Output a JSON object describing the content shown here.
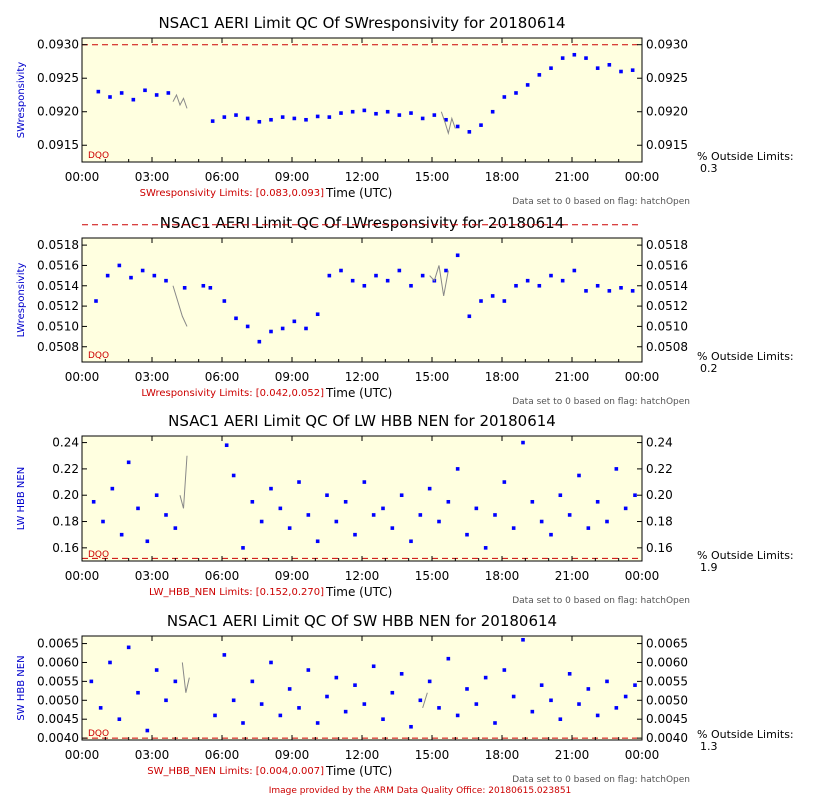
{
  "credit": "Image provided by the ARM Data Quality Office: 20180615.023851",
  "colors": {
    "plot_bg": "#ffffe0",
    "points": "#0000ff",
    "flagged": "#888888",
    "limit_line": "#cc0000"
  },
  "chart_data": [
    {
      "type": "scatter",
      "title": "NSAC1 AERI Limit QC Of SWresponsivity for 20180614",
      "ylabel": "SWresponsivity",
      "xlabel": "Time (UTC)",
      "limits_text": "SWresponsivity Limits: [0.083,0.093]",
      "flag_note": "Data set to 0 based on flag: hatchOpen",
      "pct_label": "% Outside Limits:",
      "pct_value": "0.3",
      "dqo": "DQO",
      "xlim": [
        0,
        24
      ],
      "ylim": [
        0.09125,
        0.0931
      ],
      "limit_y": 0.093,
      "x_ticks": [
        "00:00",
        "03:00",
        "06:00",
        "09:00",
        "12:00",
        "15:00",
        "18:00",
        "21:00",
        "00:00"
      ],
      "y_ticks": [
        "0.0915",
        "0.0920",
        "0.0925",
        "0.0930"
      ],
      "y_tick_values": [
        0.0915,
        0.092,
        0.0925,
        0.093
      ],
      "series": [
        {
          "style": "dots",
          "x": [
            0.7,
            1.2,
            1.7,
            2.2,
            2.7,
            3.2,
            3.7,
            5.6,
            6.1,
            6.6,
            7.1,
            7.6,
            8.1,
            8.6,
            9.1,
            9.6,
            10.1,
            10.6,
            11.1,
            11.6,
            12.1,
            12.6,
            13.1,
            13.6,
            14.1,
            14.6,
            15.1,
            15.6,
            16.1,
            16.6,
            17.1,
            17.6,
            18.1,
            18.6,
            19.1,
            19.6,
            20.1,
            20.6,
            21.1,
            21.6,
            22.1,
            22.6,
            23.1,
            23.6
          ],
          "y": [
            0.0923,
            0.09222,
            0.09228,
            0.09218,
            0.09232,
            0.09225,
            0.09228,
            0.09186,
            0.09192,
            0.09195,
            0.0919,
            0.09185,
            0.09188,
            0.09192,
            0.0919,
            0.09188,
            0.09193,
            0.09192,
            0.09198,
            0.092,
            0.09202,
            0.09197,
            0.092,
            0.09195,
            0.09198,
            0.0919,
            0.09195,
            0.09188,
            0.09178,
            0.0917,
            0.0918,
            0.092,
            0.09222,
            0.09228,
            0.0924,
            0.09255,
            0.09265,
            0.0928,
            0.09285,
            0.0928,
            0.09265,
            0.0927,
            0.0926,
            0.09262
          ]
        },
        {
          "style": "line",
          "x": [
            3.9,
            4.05,
            4.2,
            4.35,
            4.5,
            15.4,
            15.55,
            15.7,
            15.85,
            16.0
          ],
          "y": [
            0.09215,
            0.09225,
            0.0921,
            0.0922,
            0.09205,
            0.092,
            0.09185,
            0.09168,
            0.0919,
            0.09175
          ]
        }
      ]
    },
    {
      "type": "scatter",
      "title": "NSAC1 AERI Limit QC Of LWresponsivity for 20180614",
      "ylabel": "LWresponsivity",
      "xlabel": "Time (UTC)",
      "limits_text": "LWresponsivity Limits: [0.042,0.052]",
      "flag_note": "Data set to 0 based on flag: hatchOpen",
      "pct_label": "% Outside Limits:",
      "pct_value": "0.2",
      "dqo": "DQO",
      "xlim": [
        0,
        24
      ],
      "ylim": [
        0.05065,
        0.05187
      ],
      "limit_y": 0.052,
      "x_ticks": [
        "00:00",
        "03:00",
        "06:00",
        "09:00",
        "12:00",
        "15:00",
        "18:00",
        "21:00",
        "00:00"
      ],
      "y_ticks": [
        "0.0508",
        "0.0510",
        "0.0512",
        "0.0514",
        "0.0516",
        "0.0518"
      ],
      "y_tick_values": [
        0.0508,
        0.051,
        0.0512,
        0.0514,
        0.0516,
        0.0518
      ],
      "series": [
        {
          "style": "dots",
          "x": [
            0.6,
            1.1,
            1.6,
            2.1,
            2.6,
            3.1,
            3.6,
            4.4,
            5.2,
            5.5,
            6.1,
            6.6,
            7.1,
            7.6,
            8.1,
            8.6,
            9.1,
            9.6,
            10.1,
            10.6,
            11.1,
            11.6,
            12.1,
            12.6,
            13.1,
            13.6,
            14.1,
            14.6,
            15.1,
            15.6,
            16.1,
            16.6,
            17.1,
            17.6,
            18.1,
            18.6,
            19.1,
            19.6,
            20.1,
            20.6,
            21.1,
            21.6,
            22.1,
            22.6,
            23.1,
            23.6
          ],
          "y": [
            0.05125,
            0.0515,
            0.0516,
            0.05148,
            0.05155,
            0.0515,
            0.05145,
            0.05138,
            0.0514,
            0.05138,
            0.05125,
            0.05108,
            0.051,
            0.05085,
            0.05095,
            0.05098,
            0.05105,
            0.05098,
            0.05112,
            0.0515,
            0.05155,
            0.05145,
            0.0514,
            0.0515,
            0.05145,
            0.05155,
            0.0514,
            0.0515,
            0.05145,
            0.05155,
            0.0517,
            0.0511,
            0.05125,
            0.0513,
            0.05125,
            0.0514,
            0.05145,
            0.0514,
            0.0515,
            0.05145,
            0.05155,
            0.05135,
            0.0514,
            0.05135,
            0.05138,
            0.05135
          ]
        },
        {
          "style": "line",
          "x": [
            3.9,
            4.1,
            4.3,
            4.5,
            14.9,
            15.1,
            15.3,
            15.5,
            15.7
          ],
          "y": [
            0.0514,
            0.05125,
            0.0511,
            0.051,
            0.0515,
            0.05145,
            0.0516,
            0.0513,
            0.05155
          ]
        }
      ]
    },
    {
      "type": "scatter",
      "title": "NSAC1 AERI Limit QC Of LW HBB NEN for 20180614",
      "ylabel": "LW HBB NEN",
      "xlabel": "Time (UTC)",
      "limits_text": "LW_HBB_NEN Limits: [0.152,0.270]",
      "flag_note": "Data set to 0 based on flag: hatchOpen",
      "pct_label": "% Outside Limits:",
      "pct_value": "1.9",
      "dqo": "DQO",
      "xlim": [
        0,
        24
      ],
      "ylim": [
        0.15,
        0.245
      ],
      "limit_y": 0.152,
      "x_ticks": [
        "00:00",
        "03:00",
        "06:00",
        "09:00",
        "12:00",
        "15:00",
        "18:00",
        "21:00",
        "00:00"
      ],
      "y_ticks": [
        "0.16",
        "0.18",
        "0.20",
        "0.22",
        "0.24"
      ],
      "y_tick_values": [
        0.16,
        0.18,
        0.2,
        0.22,
        0.24
      ],
      "series": [
        {
          "style": "dots",
          "x": [
            0.5,
            0.9,
            1.3,
            1.7,
            2.0,
            2.4,
            2.8,
            3.2,
            3.6,
            4.0,
            6.2,
            6.5,
            6.9,
            7.3,
            7.7,
            8.1,
            8.5,
            8.9,
            9.3,
            9.7,
            10.1,
            10.5,
            10.9,
            11.3,
            11.7,
            12.1,
            12.5,
            12.9,
            13.3,
            13.7,
            14.1,
            14.5,
            14.9,
            15.3,
            15.7,
            16.1,
            16.5,
            16.9,
            17.3,
            17.7,
            18.1,
            18.5,
            18.9,
            19.3,
            19.7,
            20.1,
            20.5,
            20.9,
            21.3,
            21.7,
            22.1,
            22.5,
            22.9,
            23.3,
            23.7
          ],
          "y": [
            0.195,
            0.18,
            0.205,
            0.17,
            0.225,
            0.19,
            0.165,
            0.2,
            0.185,
            0.175,
            0.238,
            0.215,
            0.16,
            0.195,
            0.18,
            0.205,
            0.19,
            0.175,
            0.21,
            0.185,
            0.165,
            0.2,
            0.18,
            0.195,
            0.17,
            0.21,
            0.185,
            0.19,
            0.175,
            0.2,
            0.165,
            0.185,
            0.205,
            0.18,
            0.195,
            0.22,
            0.17,
            0.19,
            0.16,
            0.185,
            0.21,
            0.175,
            0.24,
            0.195,
            0.18,
            0.17,
            0.2,
            0.185,
            0.215,
            0.175,
            0.195,
            0.18,
            0.22,
            0.19,
            0.2
          ]
        },
        {
          "style": "line",
          "x": [
            4.2,
            4.35,
            4.5
          ],
          "y": [
            0.2,
            0.19,
            0.23
          ]
        }
      ]
    },
    {
      "type": "scatter",
      "title": "NSAC1 AERI Limit QC Of SW HBB NEN for 20180614",
      "ylabel": "SW HBB NEN",
      "xlabel": "Time (UTC)",
      "limits_text": "SW_HBB_NEN Limits: [0.004,0.007]",
      "flag_note": "Data set to 0 based on flag: hatchOpen",
      "pct_label": "% Outside Limits:",
      "pct_value": "1.3",
      "dqo": "DQO",
      "xlim": [
        0,
        24
      ],
      "ylim": [
        0.00395,
        0.0067
      ],
      "limit_y": 0.004,
      "x_ticks": [
        "00:00",
        "03:00",
        "06:00",
        "09:00",
        "12:00",
        "15:00",
        "18:00",
        "21:00",
        "00:00"
      ],
      "y_ticks": [
        "0.0040",
        "0.0045",
        "0.0050",
        "0.0055",
        "0.0060",
        "0.0065"
      ],
      "y_tick_values": [
        0.004,
        0.0045,
        0.005,
        0.0055,
        0.006,
        0.0065
      ],
      "series": [
        {
          "style": "dots",
          "x": [
            0.4,
            0.8,
            1.2,
            1.6,
            2.0,
            2.4,
            2.8,
            3.2,
            3.6,
            4.0,
            5.7,
            6.1,
            6.5,
            6.9,
            7.3,
            7.7,
            8.1,
            8.5,
            8.9,
            9.3,
            9.7,
            10.1,
            10.5,
            10.9,
            11.3,
            11.7,
            12.1,
            12.5,
            12.9,
            13.3,
            13.7,
            14.1,
            14.5,
            14.9,
            15.3,
            15.7,
            16.1,
            16.5,
            16.9,
            17.3,
            17.7,
            18.1,
            18.5,
            18.9,
            19.3,
            19.7,
            20.1,
            20.5,
            20.9,
            21.3,
            21.7,
            22.1,
            22.5,
            22.9,
            23.3,
            23.7
          ],
          "y": [
            0.0055,
            0.0048,
            0.006,
            0.0045,
            0.0064,
            0.0052,
            0.0042,
            0.0058,
            0.005,
            0.0055,
            0.0046,
            0.0062,
            0.005,
            0.0044,
            0.0055,
            0.0049,
            0.006,
            0.0046,
            0.0053,
            0.0048,
            0.0058,
            0.0044,
            0.0051,
            0.0056,
            0.0047,
            0.0054,
            0.0049,
            0.0059,
            0.0045,
            0.0052,
            0.0057,
            0.0043,
            0.005,
            0.0055,
            0.0048,
            0.0061,
            0.0046,
            0.0053,
            0.0049,
            0.0056,
            0.0044,
            0.0058,
            0.0051,
            0.0066,
            0.0047,
            0.0054,
            0.005,
            0.0045,
            0.0057,
            0.0049,
            0.0053,
            0.0046,
            0.0055,
            0.0048,
            0.0051,
            0.0054
          ]
        },
        {
          "style": "line",
          "x": [
            4.3,
            4.45,
            4.6,
            14.6,
            14.8
          ],
          "y": [
            0.006,
            0.0052,
            0.0056,
            0.0048,
            0.0052
          ]
        }
      ]
    }
  ]
}
